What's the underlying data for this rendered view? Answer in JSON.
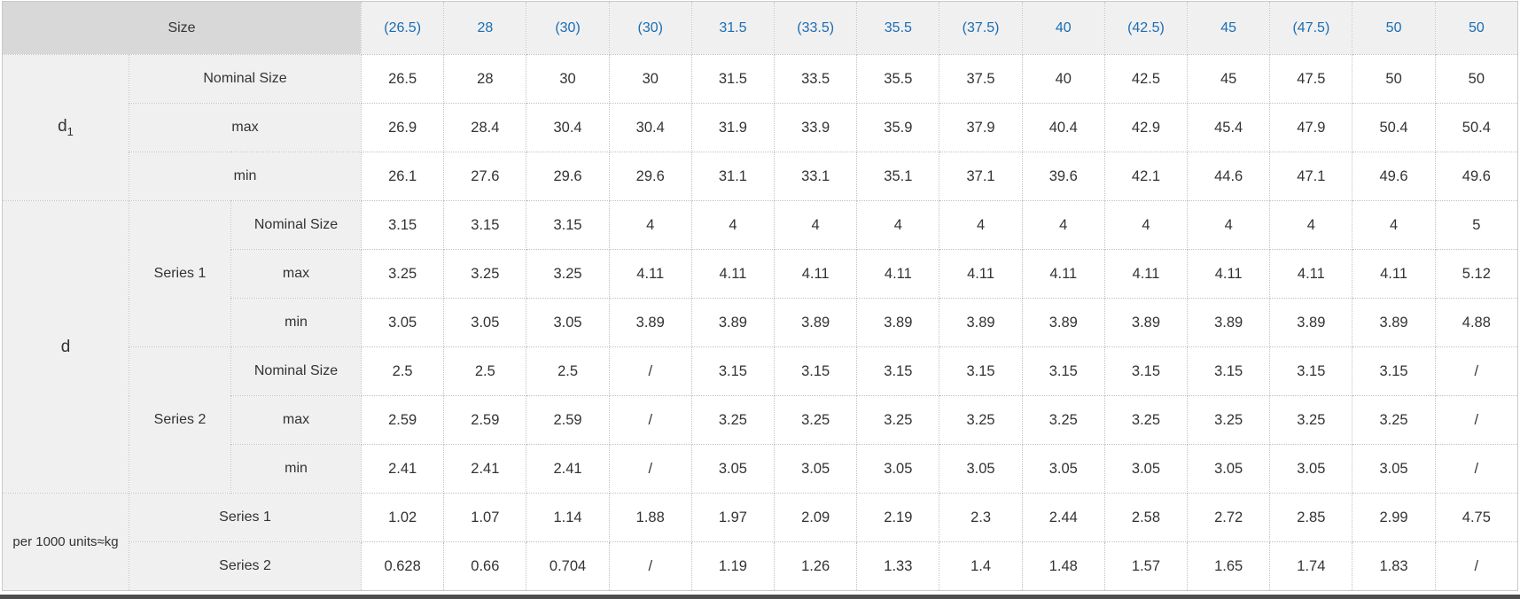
{
  "colors": {
    "header_blue": "#1b6db3",
    "corner_bg": "#d8d8d8",
    "label_bg": "#f0f0f0",
    "bottom_bar": "#4e4e4e"
  },
  "table": {
    "corner_label": "Size",
    "size_headers": [
      "(26.5)",
      "28",
      "(30)",
      "(30)",
      "31.5",
      "(33.5)",
      "35.5",
      "(37.5)",
      "40",
      "(42.5)",
      "45",
      "(47.5)",
      "50",
      "50"
    ],
    "sections": [
      {
        "group_label": "d",
        "group_sub": "1",
        "rows": [
          {
            "label": "Nominal Size",
            "values": [
              "26.5",
              "28",
              "30",
              "30",
              "31.5",
              "33.5",
              "35.5",
              "37.5",
              "40",
              "42.5",
              "45",
              "47.5",
              "50",
              "50"
            ]
          },
          {
            "label": "max",
            "values": [
              "26.9",
              "28.4",
              "30.4",
              "30.4",
              "31.9",
              "33.9",
              "35.9",
              "37.9",
              "40.4",
              "42.9",
              "45.4",
              "47.9",
              "50.4",
              "50.4"
            ]
          },
          {
            "label": "min",
            "values": [
              "26.1",
              "27.6",
              "29.6",
              "29.6",
              "31.1",
              "33.1",
              "35.1",
              "37.1",
              "39.6",
              "42.1",
              "44.6",
              "47.1",
              "49.6",
              "49.6"
            ]
          }
        ]
      },
      {
        "group_label": "d",
        "subgroups": [
          {
            "label": "Series 1",
            "rows": [
              {
                "label": "Nominal Size",
                "values": [
                  "3.15",
                  "3.15",
                  "3.15",
                  "4",
                  "4",
                  "4",
                  "4",
                  "4",
                  "4",
                  "4",
                  "4",
                  "4",
                  "4",
                  "5"
                ]
              },
              {
                "label": "max",
                "values": [
                  "3.25",
                  "3.25",
                  "3.25",
                  "4.11",
                  "4.11",
                  "4.11",
                  "4.11",
                  "4.11",
                  "4.11",
                  "4.11",
                  "4.11",
                  "4.11",
                  "4.11",
                  "5.12"
                ]
              },
              {
                "label": "min",
                "values": [
                  "3.05",
                  "3.05",
                  "3.05",
                  "3.89",
                  "3.89",
                  "3.89",
                  "3.89",
                  "3.89",
                  "3.89",
                  "3.89",
                  "3.89",
                  "3.89",
                  "3.89",
                  "4.88"
                ]
              }
            ]
          },
          {
            "label": "Series 2",
            "rows": [
              {
                "label": "Nominal Size",
                "values": [
                  "2.5",
                  "2.5",
                  "2.5",
                  "/",
                  "3.15",
                  "3.15",
                  "3.15",
                  "3.15",
                  "3.15",
                  "3.15",
                  "3.15",
                  "3.15",
                  "3.15",
                  "/"
                ]
              },
              {
                "label": "max",
                "values": [
                  "2.59",
                  "2.59",
                  "2.59",
                  "/",
                  "3.25",
                  "3.25",
                  "3.25",
                  "3.25",
                  "3.25",
                  "3.25",
                  "3.25",
                  "3.25",
                  "3.25",
                  "/"
                ]
              },
              {
                "label": "min",
                "values": [
                  "2.41",
                  "2.41",
                  "2.41",
                  "/",
                  "3.05",
                  "3.05",
                  "3.05",
                  "3.05",
                  "3.05",
                  "3.05",
                  "3.05",
                  "3.05",
                  "3.05",
                  "/"
                ]
              }
            ]
          }
        ]
      },
      {
        "group_label": "per 1000 units≈kg",
        "rows": [
          {
            "label": "Series 1",
            "values": [
              "1.02",
              "1.07",
              "1.14",
              "1.88",
              "1.97",
              "2.09",
              "2.19",
              "2.3",
              "2.44",
              "2.58",
              "2.72",
              "2.85",
              "2.99",
              "4.75"
            ]
          },
          {
            "label": "Series 2",
            "values": [
              "0.628",
              "0.66",
              "0.704",
              "/",
              "1.19",
              "1.26",
              "1.33",
              "1.4",
              "1.48",
              "1.57",
              "1.65",
              "1.74",
              "1.83",
              "/"
            ]
          }
        ]
      }
    ]
  }
}
